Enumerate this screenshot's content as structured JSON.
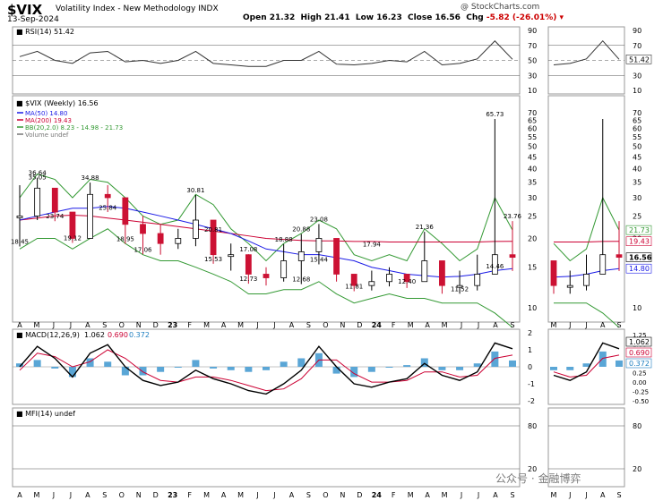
{
  "header": {
    "symbol": "$VIX",
    "description": "Volatility Index - New Methodology  INDX",
    "date": "13-Sep-2024",
    "credit": "@ StockCharts.com",
    "ohlc": {
      "open_label": "Open",
      "open": "21.32",
      "high_label": "High",
      "high": "21.41",
      "low_label": "Low",
      "low": "16.23",
      "close_label": "Close",
      "close": "16.56",
      "chg_label": "Chg",
      "chg": "-5.82 (-26.01%)"
    }
  },
  "watermark": "公众号 · 金融博弈",
  "chart_data": [
    {
      "type": "line",
      "panel": "RSI",
      "label": "RSI(14) 51.42",
      "current": 51.42,
      "ylim": [
        10,
        90
      ],
      "ticks": [
        90,
        70,
        50,
        30,
        10
      ],
      "reference_lines": [
        70,
        50,
        30
      ],
      "x": [
        "2022-05",
        "2022-06",
        "2022-07",
        "2022-08",
        "2022-09",
        "2022-10",
        "2022-11",
        "2022-12",
        "2023-01",
        "2023-02",
        "2023-03",
        "2023-04",
        "2023-05",
        "2023-06",
        "2023-07",
        "2023-08",
        "2023-09",
        "2023-10",
        "2023-11",
        "2023-12",
        "2024-01",
        "2024-02",
        "2024-03",
        "2024-04",
        "2024-05",
        "2024-06",
        "2024-07",
        "2024-08",
        "2024-09"
      ],
      "values": [
        55,
        62,
        50,
        46,
        60,
        62,
        48,
        50,
        46,
        50,
        62,
        46,
        44,
        42,
        42,
        50,
        50,
        62,
        45,
        44,
        46,
        50,
        48,
        62,
        44,
        46,
        52,
        76,
        51.42
      ]
    },
    {
      "type": "candlestick",
      "panel": "price",
      "label": "$VIX (Weekly) 16.56",
      "scale": "log",
      "ylim": [
        9,
        80
      ],
      "ticks": [
        70,
        65,
        60,
        55,
        50,
        45,
        40,
        35,
        30,
        25,
        20,
        15,
        10
      ],
      "legend": [
        {
          "name": "MA(50) 14.80",
          "color": "#1a1ae6"
        },
        {
          "name": "MA(200) 19.43",
          "color": "#cc0033"
        },
        {
          "name": "BB(20,2.0) 8.23 - 14.98 - 21.73",
          "color": "#339933"
        },
        {
          "name": "Volume undef",
          "color": "#777777"
        }
      ],
      "x": [
        "2022-05",
        "2022-06",
        "2022-07",
        "2022-08",
        "2022-09",
        "2022-10",
        "2022-11",
        "2022-12",
        "2023-01",
        "2023-02",
        "2023-03",
        "2023-04",
        "2023-05",
        "2023-06",
        "2023-07",
        "2023-08",
        "2023-09",
        "2023-10",
        "2023-11",
        "2023-12",
        "2024-01",
        "2024-02",
        "2024-03",
        "2024-04",
        "2024-05",
        "2024-06",
        "2024-07",
        "2024-08",
        "2024-09"
      ],
      "close": [
        25,
        33,
        26,
        20,
        31,
        30,
        23,
        21,
        19,
        20,
        24,
        17,
        17,
        14,
        13.5,
        16,
        17.5,
        20,
        14,
        12.5,
        13,
        14,
        13,
        16,
        12.5,
        12.5,
        14,
        17,
        16.56
      ],
      "high": [
        34,
        36.64,
        30,
        25.84,
        34.88,
        34,
        26,
        25,
        23,
        22,
        30.81,
        20.81,
        19,
        17.08,
        15,
        18.88,
        20.88,
        23.08,
        17.94,
        14,
        14.5,
        15,
        14,
        21.36,
        15,
        14.5,
        17,
        65.73,
        23.76
      ],
      "low": [
        18.45,
        24,
        23.74,
        19.12,
        25,
        26,
        18.95,
        17.06,
        17,
        18,
        18.5,
        15.53,
        14.5,
        12.73,
        12.5,
        13,
        12.68,
        15.44,
        13,
        11.81,
        11.9,
        12.4,
        12.2,
        13,
        11.52,
        11.52,
        11.9,
        14.46,
        14.46
      ],
      "annotations": [
        {
          "label": "18.45",
          "x": "2022-05",
          "y": 18.45
        },
        {
          "label": "36.64",
          "x": "2022-06",
          "y": 36.64
        },
        {
          "label": "35.05",
          "x": "2022-06",
          "y": 35.05
        },
        {
          "label": "23.74",
          "x": "2022-07",
          "y": 23.74
        },
        {
          "label": "19.12",
          "x": "2022-08",
          "y": 19.12
        },
        {
          "label": "25.84",
          "x": "2022-10",
          "y": 25.84
        },
        {
          "label": "34.88",
          "x": "2022-09",
          "y": 34.88
        },
        {
          "label": "18.95",
          "x": "2022-11",
          "y": 18.95
        },
        {
          "label": "17.06",
          "x": "2022-12",
          "y": 17.06
        },
        {
          "label": "30.81",
          "x": "2023-03",
          "y": 30.81
        },
        {
          "label": "20.81",
          "x": "2023-04",
          "y": 20.81
        },
        {
          "label": "15.53",
          "x": "2023-04",
          "y": 15.53
        },
        {
          "label": "17.08",
          "x": "2023-06",
          "y": 17.08
        },
        {
          "label": "12.73",
          "x": "2023-06",
          "y": 12.73
        },
        {
          "label": "18.88",
          "x": "2023-08",
          "y": 18.88
        },
        {
          "label": "12.68",
          "x": "2023-09",
          "y": 12.68
        },
        {
          "label": "20.88",
          "x": "2023-09",
          "y": 20.88
        },
        {
          "label": "23.08",
          "x": "2023-10",
          "y": 23.08
        },
        {
          "label": "15.44",
          "x": "2023-10",
          "y": 15.44
        },
        {
          "label": "11.81",
          "x": "2023-12",
          "y": 11.81
        },
        {
          "label": "17.94",
          "x": "2024-01",
          "y": 17.94
        },
        {
          "label": "12.40",
          "x": "2024-03",
          "y": 12.4
        },
        {
          "label": "21.36",
          "x": "2024-04",
          "y": 21.36
        },
        {
          "label": "11.52",
          "x": "2024-06",
          "y": 11.52
        },
        {
          "label": "65.73",
          "x": "2024-08",
          "y": 65.73
        },
        {
          "label": "23.76",
          "x": "2024-09",
          "y": 23.76
        },
        {
          "label": "14.46",
          "x": "2024-08",
          "y": 14.46
        }
      ],
      "ma50": [
        24,
        25,
        26,
        27,
        27,
        27.5,
        27,
        26,
        25,
        24,
        23,
        22,
        21,
        19.5,
        18,
        17.5,
        17,
        17,
        16.5,
        16,
        15,
        14.5,
        14,
        13.8,
        13.6,
        13.7,
        14,
        14.5,
        14.8
      ],
      "ma200": [
        24,
        24.5,
        25,
        25.2,
        25,
        24.5,
        24,
        23.5,
        23,
        22.5,
        22,
        21.5,
        21,
        20.5,
        20,
        19.8,
        19.6,
        19.5,
        19.5,
        19.4,
        19.4,
        19.3,
        19.3,
        19.3,
        19.3,
        19.3,
        19.3,
        19.4,
        19.43
      ],
      "bb_upper": [
        30,
        38,
        36,
        30,
        36,
        35,
        30,
        25,
        23,
        24,
        31,
        28,
        22,
        19,
        16,
        19,
        21,
        24,
        22,
        17,
        16,
        17,
        16,
        22,
        19,
        16,
        18,
        30,
        21.73
      ],
      "bb_lower": [
        18,
        20,
        20,
        18,
        20,
        22,
        19,
        17,
        16,
        16,
        15,
        14,
        13,
        11.5,
        11.5,
        12,
        12,
        13,
        11.5,
        10.5,
        11,
        11.5,
        11,
        11,
        10.5,
        10.5,
        10.5,
        9.5,
        8.23
      ],
      "right_labels": [
        {
          "label": "21.73",
          "value": 21.73,
          "color": "#339933"
        },
        {
          "label": "19.43",
          "value": 19.43,
          "color": "#cc0033"
        },
        {
          "label": "16.56",
          "value": 16.56,
          "color": "#000000"
        },
        {
          "label": "14.80",
          "value": 14.8,
          "color": "#1a1ae6"
        }
      ]
    },
    {
      "type": "line",
      "panel": "MACD",
      "label": "MACD(12,26,9)",
      "values_label": {
        "macd": "1.062",
        "signal": "0.690",
        "hist": "0.372"
      },
      "ylim": [
        -2,
        2
      ],
      "ticks": [
        2,
        1,
        0,
        -1,
        -2
      ],
      "x": [
        "2022-05",
        "2022-06",
        "2022-07",
        "2022-08",
        "2022-09",
        "2022-10",
        "2022-11",
        "2022-12",
        "2023-01",
        "2023-02",
        "2023-03",
        "2023-04",
        "2023-05",
        "2023-06",
        "2023-07",
        "2023-08",
        "2023-09",
        "2023-10",
        "2023-11",
        "2023-12",
        "2024-01",
        "2024-02",
        "2024-03",
        "2024-04",
        "2024-05",
        "2024-06",
        "2024-07",
        "2024-08",
        "2024-09"
      ],
      "series": [
        {
          "name": "MACD",
          "values": [
            0.0,
            1.2,
            0.5,
            -0.6,
            0.8,
            1.3,
            0.0,
            -0.8,
            -1.1,
            -0.9,
            -0.2,
            -0.7,
            -1.0,
            -1.4,
            -1.6,
            -1.0,
            -0.2,
            1.2,
            0.0,
            -1.0,
            -1.2,
            -0.9,
            -0.7,
            0.2,
            -0.5,
            -0.8,
            -0.3,
            1.4,
            1.062
          ]
        },
        {
          "name": "Signal",
          "values": [
            -0.2,
            0.8,
            0.6,
            0.0,
            0.3,
            1.0,
            0.5,
            -0.3,
            -0.8,
            -0.9,
            -0.6,
            -0.6,
            -0.8,
            -1.1,
            -1.4,
            -1.3,
            -0.7,
            0.4,
            0.4,
            -0.4,
            -0.9,
            -0.9,
            -0.8,
            -0.3,
            -0.3,
            -0.6,
            -0.5,
            0.5,
            0.69
          ]
        },
        {
          "name": "Histogram",
          "values": [
            0.2,
            0.4,
            -0.1,
            -0.6,
            0.5,
            0.3,
            -0.5,
            -0.5,
            -0.3,
            0.0,
            0.4,
            -0.1,
            -0.2,
            -0.3,
            -0.2,
            0.3,
            0.5,
            0.8,
            -0.4,
            -0.6,
            -0.3,
            0.0,
            0.1,
            0.5,
            -0.2,
            -0.2,
            0.2,
            0.9,
            0.372
          ]
        }
      ],
      "right_labels": [
        {
          "label": "1.062",
          "value": 1.062,
          "color": "#000000"
        },
        {
          "label": "0.690",
          "value": 0.69,
          "color": "#cc0033"
        },
        {
          "label": "0.372",
          "value": 0.372,
          "color": "#1e7fc0"
        }
      ],
      "zoom_ticks": [
        "1.25",
        "1.00",
        "0.75",
        "0.50",
        "0.25",
        "0.00",
        "-0.25",
        "-0.50"
      ]
    },
    {
      "type": "line",
      "panel": "MFI",
      "label": "MFI(14) undef",
      "ylim": [
        0,
        100
      ],
      "ticks": [
        80,
        20
      ],
      "x_tick_labels": [
        "A",
        "M",
        "J",
        "J",
        "A",
        "S",
        "O",
        "N",
        "D",
        "23",
        "F",
        "M",
        "A",
        "M",
        "J",
        "J",
        "A",
        "S",
        "O",
        "N",
        "D",
        "24",
        "F",
        "M",
        "A",
        "M",
        "J",
        "J",
        "A",
        "S"
      ],
      "zoom_x_tick_labels": [
        "M",
        "J",
        "J",
        "A",
        "S"
      ]
    }
  ]
}
